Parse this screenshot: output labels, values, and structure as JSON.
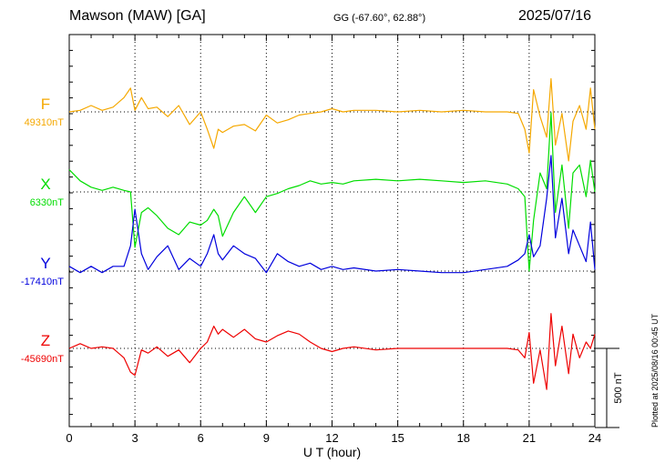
{
  "header": {
    "station": "Mawson (MAW)  [GA]",
    "coords": "GG (-67.60°,  62.88°)",
    "date": "2025/07/16"
  },
  "footer": {
    "plotted": "Plotted at 2025/08/16 00:45 UT"
  },
  "chart_data": {
    "type": "line",
    "title": "",
    "xlabel": "U T (hour)",
    "ylabel": "",
    "xlim": [
      0,
      24
    ],
    "x_ticks": [
      0,
      3,
      6,
      9,
      12,
      15,
      18,
      21,
      24
    ],
    "scale_bar": {
      "value": 500,
      "label": "500 nT"
    },
    "grid": true,
    "colors": {
      "F": "#f5a800",
      "X": "#00dd00",
      "Y": "#0000dd",
      "Z": "#ee0000"
    },
    "series": [
      {
        "name": "F",
        "baseline_label": "49310nT",
        "baseline": 49310,
        "x": [
          0,
          0.5,
          1,
          1.5,
          2,
          2.5,
          2.8,
          3.0,
          3.3,
          3.6,
          4,
          4.5,
          5,
          5.5,
          6,
          6.3,
          6.6,
          6.8,
          7,
          7.5,
          8,
          8.5,
          9,
          9.5,
          10,
          10.5,
          11,
          11.5,
          12,
          12.5,
          13,
          14,
          15,
          16,
          17,
          18,
          19,
          20,
          20.5,
          20.8,
          21,
          21.2,
          21.5,
          21.8,
          22,
          22.2,
          22.5,
          22.8,
          23,
          23.3,
          23.6,
          23.8,
          24
        ],
        "y": [
          49310,
          49320,
          49350,
          49320,
          49340,
          49400,
          49460,
          49320,
          49400,
          49330,
          49340,
          49280,
          49350,
          49230,
          49310,
          49200,
          49080,
          49200,
          49180,
          49220,
          49230,
          49190,
          49290,
          49240,
          49260,
          49290,
          49300,
          49310,
          49330,
          49310,
          49320,
          49320,
          49310,
          49320,
          49310,
          49320,
          49310,
          49310,
          49300,
          49200,
          49050,
          49450,
          49280,
          49150,
          49520,
          49100,
          49300,
          49000,
          49250,
          49350,
          49200,
          49460,
          49200
        ]
      },
      {
        "name": "X",
        "baseline_label": "6330nT",
        "baseline": 6330,
        "x": [
          0,
          0.5,
          1,
          1.5,
          2,
          2.5,
          2.8,
          3.0,
          3.3,
          3.6,
          4,
          4.5,
          5,
          5.5,
          6,
          6.3,
          6.6,
          6.8,
          7,
          7.5,
          8,
          8.5,
          9,
          9.5,
          10,
          10.5,
          11,
          11.5,
          12,
          12.5,
          13,
          14,
          15,
          16,
          17,
          18,
          19,
          20,
          20.5,
          20.8,
          21,
          21.2,
          21.5,
          21.8,
          22,
          22.2,
          22.5,
          22.8,
          23,
          23.3,
          23.6,
          23.8,
          24
        ],
        "y": [
          6470,
          6400,
          6360,
          6340,
          6360,
          6340,
          6330,
          5980,
          6200,
          6230,
          6180,
          6100,
          6060,
          6140,
          6120,
          6150,
          6220,
          6180,
          6050,
          6200,
          6300,
          6200,
          6300,
          6320,
          6350,
          6370,
          6400,
          6380,
          6390,
          6380,
          6400,
          6410,
          6400,
          6410,
          6400,
          6390,
          6400,
          6380,
          6350,
          6300,
          5830,
          6150,
          6450,
          6350,
          6830,
          6200,
          6500,
          6100,
          6450,
          6500,
          6300,
          6530,
          6330
        ]
      },
      {
        "name": "Y",
        "baseline_label": "-17410nT",
        "baseline": -17410,
        "x": [
          0,
          0.5,
          1,
          1.5,
          2,
          2.5,
          2.8,
          3.0,
          3.3,
          3.6,
          4,
          4.5,
          5,
          5.5,
          6,
          6.3,
          6.6,
          6.8,
          7,
          7.5,
          8,
          8.5,
          9,
          9.5,
          10,
          10.5,
          11,
          11.5,
          12,
          12.5,
          13,
          14,
          15,
          16,
          17,
          18,
          19,
          20,
          20.5,
          20.8,
          21,
          21.2,
          21.5,
          21.8,
          22,
          22.2,
          22.5,
          22.8,
          23,
          23.3,
          23.6,
          23.8,
          24
        ],
        "y": [
          -17380,
          -17420,
          -17380,
          -17420,
          -17380,
          -17380,
          -17250,
          -17020,
          -17300,
          -17400,
          -17320,
          -17250,
          -17400,
          -17330,
          -17380,
          -17300,
          -17180,
          -17300,
          -17340,
          -17250,
          -17300,
          -17330,
          -17420,
          -17300,
          -17350,
          -17380,
          -17360,
          -17400,
          -17380,
          -17400,
          -17390,
          -17410,
          -17400,
          -17410,
          -17420,
          -17420,
          -17400,
          -17380,
          -17340,
          -17300,
          -17180,
          -17320,
          -17250,
          -16950,
          -16680,
          -17200,
          -16950,
          -17300,
          -17150,
          -17250,
          -17350,
          -17100,
          -17400
        ]
      },
      {
        "name": "Z",
        "baseline_label": "-45690nT",
        "baseline": -45690,
        "x": [
          0,
          0.5,
          1,
          1.5,
          2,
          2.5,
          2.8,
          3.0,
          3.3,
          3.6,
          4,
          4.5,
          5,
          5.5,
          6,
          6.3,
          6.6,
          6.8,
          7,
          7.5,
          8,
          8.5,
          9,
          9.5,
          10,
          10.5,
          11,
          11.5,
          12,
          12.5,
          13,
          14,
          15,
          16,
          17,
          18,
          19,
          20,
          20.5,
          20.8,
          21,
          21.2,
          21.5,
          21.8,
          22,
          22.2,
          22.5,
          22.8,
          23,
          23.3,
          23.6,
          23.8,
          24
        ],
        "y": [
          -45690,
          -45660,
          -45690,
          -45680,
          -45690,
          -45750,
          -45840,
          -45860,
          -45700,
          -45720,
          -45680,
          -45740,
          -45700,
          -45780,
          -45690,
          -45650,
          -45550,
          -45600,
          -45570,
          -45620,
          -45570,
          -45630,
          -45650,
          -45610,
          -45580,
          -45600,
          -45650,
          -45690,
          -45710,
          -45690,
          -45680,
          -45700,
          -45690,
          -45690,
          -45690,
          -45690,
          -45690,
          -45690,
          -45700,
          -45750,
          -45590,
          -45910,
          -45700,
          -45950,
          -45470,
          -45800,
          -45550,
          -45850,
          -45600,
          -45750,
          -45650,
          -45690,
          -45600
        ]
      }
    ]
  }
}
